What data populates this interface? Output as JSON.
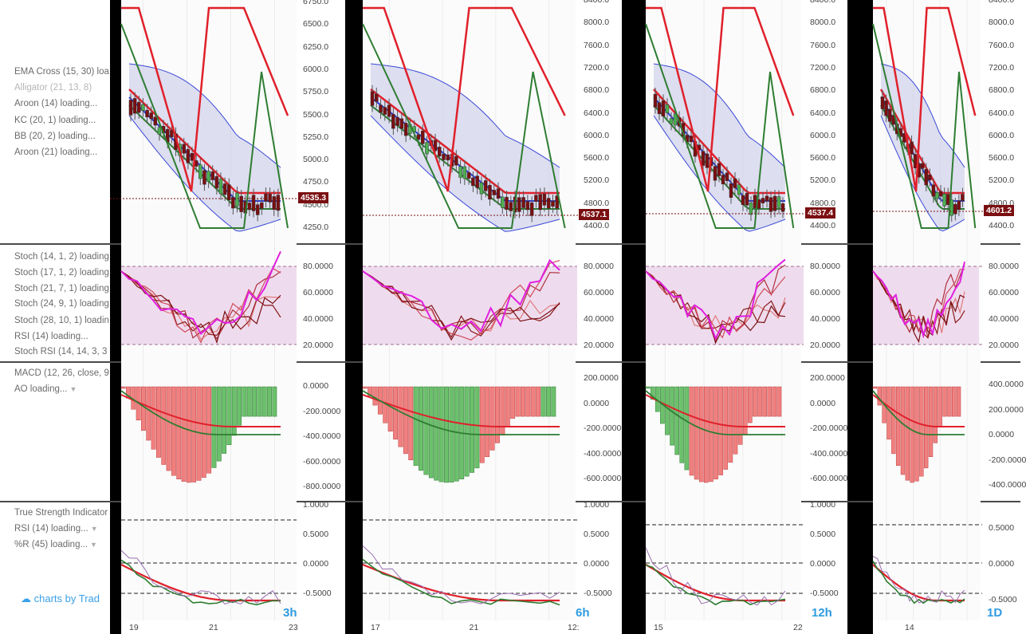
{
  "indicators": {
    "main_pane": [
      "EMA Cross (15, 30) loa",
      "Alligator (21, 13, 8)",
      "Aroon (14) loading...",
      "KC (20, 1) loading...",
      "BB (20, 2) loading...",
      "Aroon (21) loading..."
    ],
    "stoch_pane": [
      "Stoch (14, 1, 2) loading",
      "Stoch (17, 1, 2) loading",
      "Stoch (21, 7, 1) loading",
      "Stoch (24, 9, 1) loading",
      "Stoch (28, 10, 1) loadin",
      "RSI (14) loading...",
      "Stoch RSI (14, 14, 3, 3"
    ],
    "macd_pane": [
      "MACD (12, 26, close, 9",
      "AO loading..."
    ],
    "tsi_pane": [
      "True Strength Indicator",
      "RSI (14) loading...",
      "%R (45) loading..."
    ]
  },
  "logo_text": "charts by Trad",
  "panels": [
    {
      "timeframe": "3h",
      "price_label": "4535.3",
      "price_axis": [
        "6750.0",
        "6500.0",
        "6250.0",
        "6000.0",
        "5750.0",
        "5500.0",
        "5250.0",
        "5000.0",
        "4750.0",
        "4500.0",
        "4250.0"
      ],
      "stoch_axis": [
        "80.0000",
        "60.0000",
        "40.0000",
        "20.0000"
      ],
      "macd_axis": [
        "0.0000",
        "-200.0000",
        "-400.0000",
        "-600.0000",
        "-800.0000"
      ],
      "tsi_axis": [
        "1.0000",
        "0.5000",
        "0.0000",
        "-0.5000"
      ],
      "time_axis": [
        "19",
        "21",
        "23"
      ]
    },
    {
      "timeframe": "6h",
      "price_label": "4537.1",
      "price_axis": [
        "8400.0",
        "8000.0",
        "7600.0",
        "7200.0",
        "6800.0",
        "6400.0",
        "6000.0",
        "5600.0",
        "5200.0",
        "4800.0",
        "4400.0"
      ],
      "stoch_axis": [
        "80.0000",
        "60.0000",
        "40.0000",
        "20.0000"
      ],
      "macd_axis": [
        "200.0000",
        "0.0000",
        "-200.0000",
        "-400.0000",
        "-600.0000"
      ],
      "tsi_axis": [
        "1.0000",
        "0.5000",
        "0.0000",
        "-0.5000"
      ],
      "time_axis": [
        "17",
        "21",
        "12:"
      ]
    },
    {
      "timeframe": "12h",
      "price_label": "4537.4",
      "price_axis": [
        "8400.0",
        "8000.0",
        "7600.0",
        "7200.0",
        "6800.0",
        "6400.0",
        "6000.0",
        "5600.0",
        "5200.0",
        "4800.0",
        "4400.0"
      ],
      "stoch_axis": [
        "80.0000",
        "60.0000",
        "40.0000",
        "20.0000"
      ],
      "macd_axis": [
        "200.0000",
        "0.0000",
        "-200.0000",
        "-400.0000",
        "-600.0000"
      ],
      "tsi_axis": [
        "1.0000",
        "0.5000",
        "0.0000",
        "-0.5000"
      ],
      "time_axis": [
        "15",
        "22"
      ]
    },
    {
      "timeframe": "1D",
      "price_label": "4601.2",
      "price_axis": [
        "8400.0",
        "8000.0",
        "7600.0",
        "7200.0",
        "6800.0",
        "6400.0",
        "6000.0",
        "5600.0",
        "5200.0",
        "4800.0",
        "4400.0"
      ],
      "stoch_axis": [
        "80.0000",
        "60.0000",
        "40.0000",
        "20.0000"
      ],
      "macd_axis": [
        "400.0000",
        "200.0000",
        "0.0000",
        "-200.0000",
        "-400.0000"
      ],
      "tsi_axis": [
        "0.5000",
        "0.0000",
        "-0.5000"
      ],
      "time_axis": [
        "14"
      ]
    }
  ],
  "colors": {
    "up": "#4caf50",
    "down": "#7a0f12",
    "ema_fast": "#e0202b",
    "bb": "#2d3bd6",
    "stoch_band": "#eedcee",
    "timeframe": "#2d9be0"
  }
}
